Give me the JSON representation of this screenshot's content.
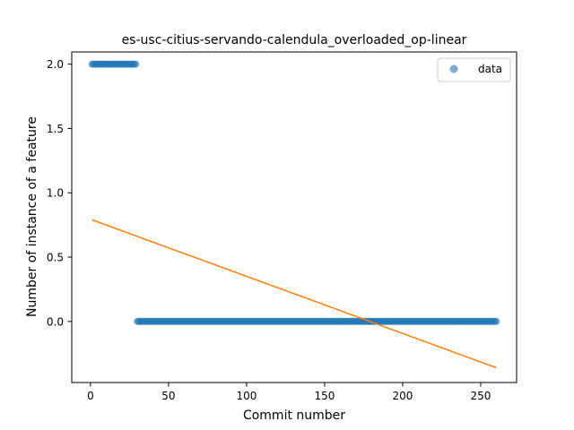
{
  "chart_data": {
    "type": "scatter",
    "title": "es-usc-citius-servando-calendula_overloaded_op-linear",
    "xlabel": "Commit number",
    "ylabel": "Number of instance of a feature",
    "xlim": [
      -12,
      273
    ],
    "ylim": [
      -0.475,
      2.095
    ],
    "x_ticks": [
      0,
      50,
      100,
      150,
      200,
      250
    ],
    "y_ticks": [
      0.0,
      0.5,
      1.0,
      1.5,
      2.0
    ],
    "x_tick_labels": [
      "0",
      "50",
      "100",
      "150",
      "200",
      "250"
    ],
    "y_tick_labels": [
      "0.0",
      "0.5",
      "1.0",
      "1.5",
      "2.0"
    ],
    "legend_position": "top-right",
    "grid": false,
    "colors": {
      "data": "#1f77b4",
      "fit": "#ff7f0e"
    },
    "series": [
      {
        "name": "data",
        "kind": "scatter",
        "segments": [
          {
            "x_start": 1,
            "x_end": 29,
            "y": 2.0
          },
          {
            "x_start": 30,
            "x_end": 260,
            "y": 0.0
          }
        ]
      },
      {
        "kind": "line",
        "x": [
          1,
          260
        ],
        "y": [
          0.79,
          -0.36
        ]
      }
    ]
  }
}
